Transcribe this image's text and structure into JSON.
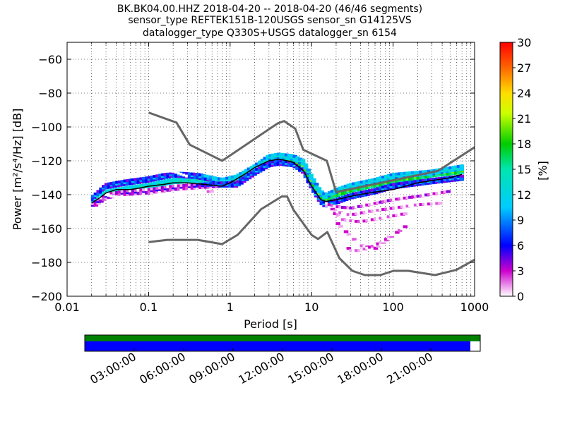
{
  "title_lines": [
    "BK.BK04.00.HHZ   2018-04-20 -- 2018-04-20  (46/46 segments)",
    "sensor_type REFTEK151B-120USGS sensor_sn G14125VS",
    "datalogger_type Q330S+USGS datalogger_sn 6154"
  ],
  "chart_data": {
    "type": "heatmap",
    "xlabel": "Period [s]",
    "ylabel": "Power [m²/s⁴/Hz] [dB]",
    "xscale": "log",
    "xlim": [
      0.01,
      1000
    ],
    "ylim": [
      -200,
      -50
    ],
    "x_ticks": [
      0.01,
      0.1,
      1,
      10,
      100,
      1000
    ],
    "x_tick_labels": [
      "0.01",
      "0.1",
      "1",
      "10",
      "100",
      "1000"
    ],
    "y_ticks": [
      -200,
      -180,
      -160,
      -140,
      -120,
      -100,
      -80,
      -60
    ],
    "grid": true,
    "colorbar": {
      "label": "[%]",
      "range": [
        0,
        30
      ],
      "ticks": [
        0,
        3,
        6,
        9,
        12,
        15,
        18,
        21,
        24,
        27,
        30
      ]
    },
    "noise_model_high": {
      "x": [
        0.1,
        0.22,
        0.32,
        0.8,
        3.8,
        4.6,
        6.3,
        7.9,
        15.4,
        20,
        354,
        1000
      ],
      "y": [
        -91.5,
        -97.4,
        -110.5,
        -120,
        -98,
        -96.5,
        -101,
        -113.5,
        -120,
        -138.5,
        -126,
        -112
      ]
    },
    "noise_model_low": {
      "x": [
        0.1,
        0.17,
        0.4,
        0.8,
        1.24,
        2.4,
        4.3,
        5,
        6,
        10,
        12,
        15.6,
        21.9,
        31.6,
        45,
        70,
        101,
        154,
        328,
        600,
        1000
      ],
      "y": [
        -168,
        -166.7,
        -166.7,
        -169.2,
        -163.7,
        -148.6,
        -141.1,
        -141.1,
        -149,
        -163.8,
        -166.2,
        -162.1,
        -177.5,
        -185,
        -187.5,
        -187.5,
        -185,
        -185,
        -187.5,
        -184.4,
        -178.4
      ]
    },
    "median": {
      "x": [
        0.02,
        0.025,
        0.03,
        0.04,
        0.06,
        0.08,
        0.1,
        0.15,
        0.2,
        0.3,
        0.5,
        0.8,
        1,
        1.5,
        2,
        3,
        4,
        5,
        6,
        8,
        10,
        13,
        15,
        20,
        30,
        50,
        100,
        200,
        500,
        700
      ],
      "y": [
        -145,
        -142,
        -139,
        -137,
        -137,
        -136,
        -135,
        -134,
        -133,
        -133,
        -134,
        -135,
        -133,
        -128,
        -124,
        -120,
        -119,
        -120,
        -121,
        -126,
        -135,
        -143,
        -144,
        -143,
        -141,
        -139,
        -137,
        -133,
        -130,
        -128
      ]
    },
    "density_bands": [
      {
        "name": "mode",
        "x": [
          0.02,
          0.03,
          0.05,
          0.1,
          0.2,
          0.4,
          0.8,
          1.2,
          2,
          3,
          4,
          6,
          8,
          10,
          13,
          15,
          20,
          30,
          60,
          100,
          300,
          700
        ],
        "y": [
          -146,
          -139,
          -137,
          -135,
          -132,
          -131,
          -133,
          -132,
          -126,
          -120,
          -119,
          -120,
          -123,
          -132,
          -141,
          -143,
          -140,
          -137,
          -134,
          -132,
          -128,
          -126
        ],
        "pct": 18
      },
      {
        "name": "upper",
        "x": [
          0.02,
          0.03,
          0.05,
          0.1,
          0.2,
          0.4,
          0.8,
          1.2,
          2,
          3,
          4,
          6,
          8,
          10,
          13,
          15,
          20,
          30,
          60,
          100,
          300,
          700
        ],
        "y": [
          -143,
          -135,
          -133,
          -131,
          -128,
          -129,
          -132,
          -130,
          -124,
          -118,
          -117,
          -118,
          -121,
          -130,
          -139,
          -141,
          -138,
          -135,
          -132,
          -129,
          -127,
          -124
        ],
        "pct": 12
      },
      {
        "name": "lower",
        "x": [
          0.02,
          0.03,
          0.05,
          0.1,
          0.2,
          0.4,
          0.8,
          1.2,
          2,
          3,
          4,
          6,
          8,
          10,
          13,
          15,
          20,
          30,
          60,
          100,
          300,
          700
        ],
        "y": [
          -147,
          -141,
          -139,
          -138,
          -136,
          -135,
          -134,
          -134,
          -127,
          -122,
          -121,
          -122,
          -126,
          -135,
          -144,
          -146,
          -144,
          -141,
          -138,
          -135,
          -132,
          -130
        ],
        "pct": 8
      },
      {
        "name": "outlier-high",
        "x": [
          0.03,
          0.05,
          0.1,
          0.2,
          0.3
        ],
        "y": [
          -129,
          -129,
          -127,
          -126,
          -129
        ],
        "pct": 2
      },
      {
        "name": "outlier-low",
        "x": [
          0.03,
          0.05,
          0.08,
          0.15,
          0.3,
          0.6
        ],
        "y": [
          -140,
          -142,
          -142,
          -140,
          -139,
          -138
        ],
        "pct": 2
      },
      {
        "name": "tail-1",
        "x": [
          15,
          20,
          30,
          50,
          100,
          200,
          500
        ],
        "y": [
          -145,
          -147,
          -148,
          -146,
          -143,
          -141,
          -138
        ],
        "pct": 2
      },
      {
        "name": "tail-2",
        "x": [
          15,
          20,
          30,
          50,
          100,
          200,
          400
        ],
        "y": [
          -146,
          -150,
          -152,
          -150,
          -148,
          -146,
          -145
        ],
        "pct": 1
      },
      {
        "name": "tail-3",
        "x": [
          18,
          25,
          40,
          70,
          150
        ],
        "y": [
          -150,
          -155,
          -156,
          -154,
          -151
        ],
        "pct": 1
      },
      {
        "name": "tail-4",
        "x": [
          20,
          28,
          40,
          60,
          100,
          150
        ],
        "y": [
          -156,
          -163,
          -170,
          -172,
          -164,
          -158
        ],
        "pct": 1
      },
      {
        "name": "tail-5",
        "x": [
          25,
          30,
          40,
          60,
          80,
          100
        ],
        "y": [
          -168,
          -173,
          -173,
          -170,
          -167,
          -163
        ],
        "pct": 1
      }
    ]
  },
  "timeline": {
    "tick_labels": [
      "03:00:00",
      "06:00:00",
      "09:00:00",
      "12:00:00",
      "15:00:00",
      "18:00:00",
      "21:00:00"
    ],
    "tick_hours": [
      3,
      6,
      9,
      12,
      15,
      18,
      21
    ],
    "coverage_fraction": 0.975,
    "colors": {
      "top": "#008000",
      "bottom": "#0000ff"
    }
  }
}
